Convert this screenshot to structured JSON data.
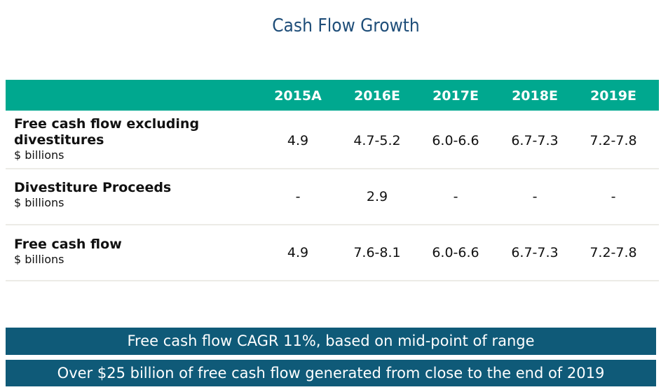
{
  "title": "Cash Flow Growth",
  "table": {
    "columns": [
      "2015A",
      "2016E",
      "2017E",
      "2018E",
      "2019E"
    ],
    "rows": [
      {
        "label_line1": "Free cash flow excluding",
        "label_line2": "divestitures",
        "unit": "$ billions",
        "values": [
          "4.9",
          "4.7-5.2",
          "6.0-6.6",
          "6.7-7.3",
          "7.2-7.8"
        ]
      },
      {
        "label_line1": "Divestiture Proceeds",
        "unit": "$ billions",
        "values": [
          "-",
          "2.9",
          "-",
          "-",
          "-"
        ]
      },
      {
        "label_line1": "Free cash flow",
        "unit": "$ billions",
        "values": [
          "4.9",
          "7.6-8.1",
          "6.0-6.6",
          "6.7-7.3",
          "7.2-7.8"
        ]
      }
    ]
  },
  "banners": [
    "Free cash flow CAGR 11%, based on mid-point of range",
    "Over $25 billion of free cash flow generated from close to the end of 2019"
  ],
  "colors": {
    "header": "#00a88f",
    "banner": "#0f5a78",
    "title": "#1f4e79"
  }
}
